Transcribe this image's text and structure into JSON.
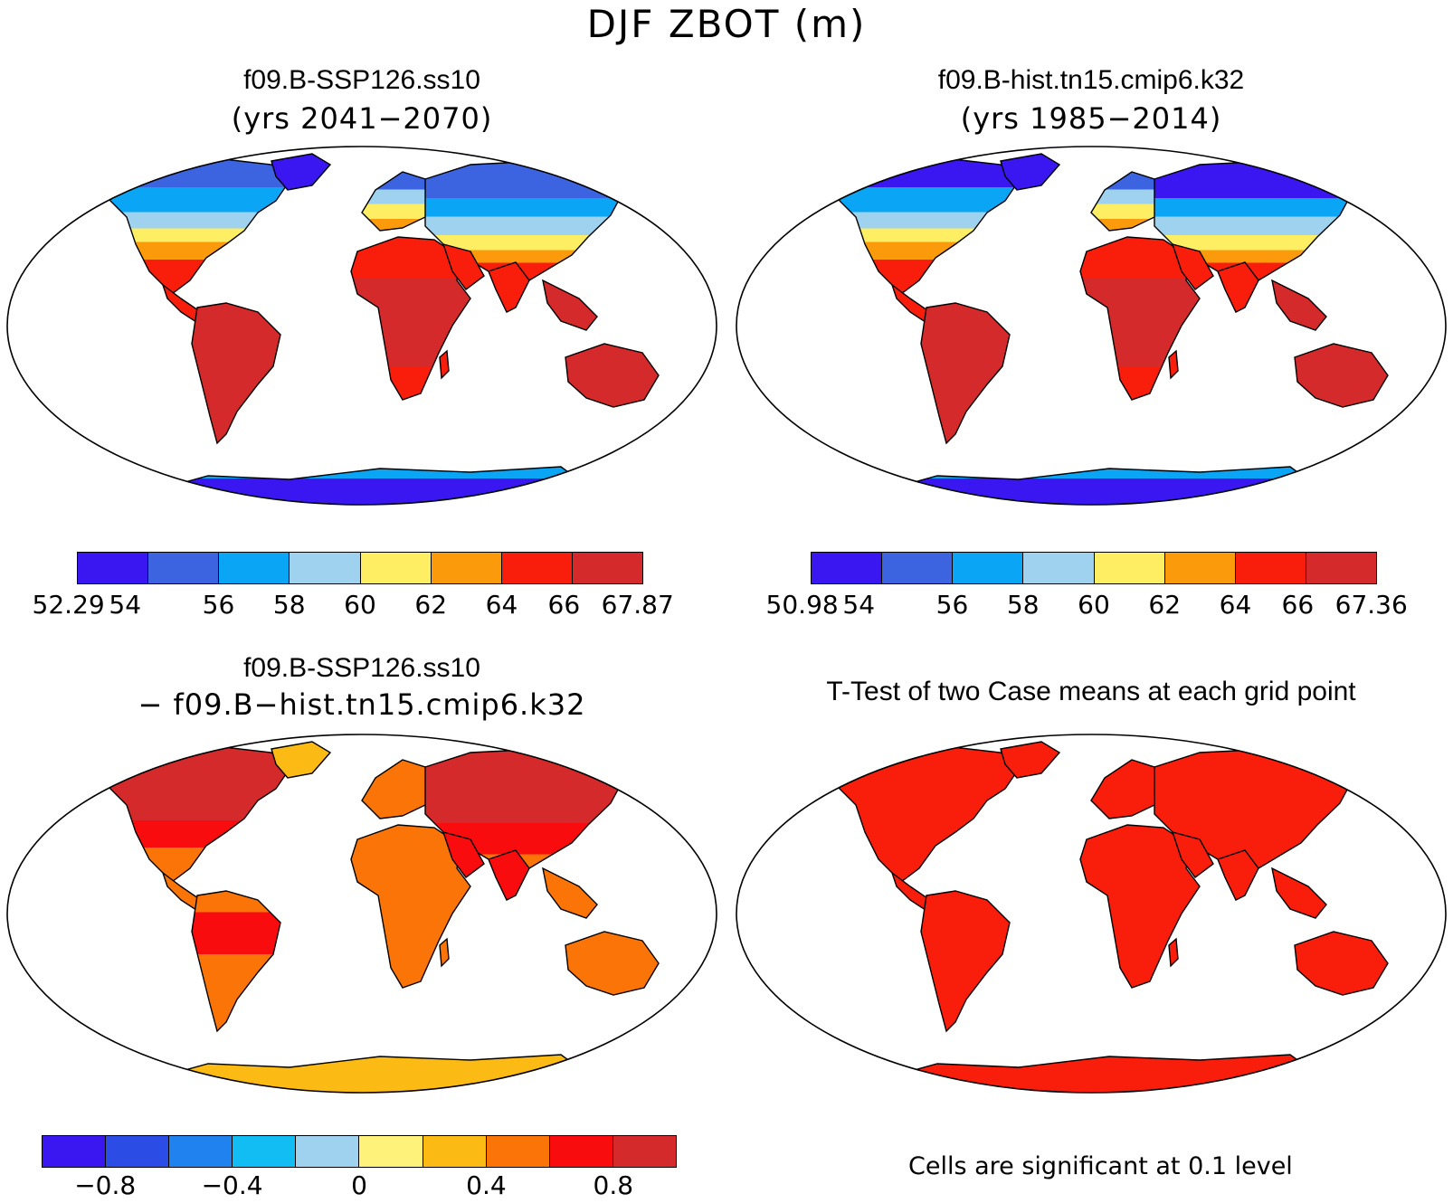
{
  "title": "DJF ZBOT (m)",
  "panels": [
    {
      "id": "p1",
      "title": "f09.B-SSP126.ss10",
      "subtitle": "(yrs 2041−2070)",
      "colormap": "abs"
    },
    {
      "id": "p2",
      "title": "f09.B-hist.tn15.cmip6.k32",
      "subtitle": "(yrs 1985−2014)",
      "colormap": "abs"
    },
    {
      "id": "p3",
      "title": "f09.B-SSP126.ss10",
      "subtitle": "− f09.B−hist.tn15.cmip6.k32",
      "colormap": "diff"
    },
    {
      "id": "p4",
      "title": "T-Test of two Case means at each grid point",
      "subtitle": "",
      "colormap": "sig"
    }
  ],
  "colorbars": {
    "cb1": {
      "colors": [
        "#3a16f0",
        "#3d64e0",
        "#0aa6f5",
        "#9fd2ef",
        "#fdee63",
        "#fb9b0b",
        "#f91d0b",
        "#d42a2b"
      ],
      "labels": [
        "52.29",
        "54",
        "56",
        "58",
        "60",
        "62",
        "64",
        "66",
        "67.87"
      ]
    },
    "cb2": {
      "colors": [
        "#3a16f0",
        "#3d64e0",
        "#0aa6f5",
        "#9fd2ef",
        "#fdee63",
        "#fb9b0b",
        "#f91d0b",
        "#d42a2b"
      ],
      "labels": [
        "50.98",
        "54",
        "56",
        "58",
        "60",
        "62",
        "64",
        "66",
        "67.36"
      ]
    },
    "cb3": {
      "colors": [
        "#3a16f0",
        "#2b4de6",
        "#1f82ef",
        "#12bdf4",
        "#9fd2ef",
        "#fff27a",
        "#fbbb14",
        "#fb7407",
        "#f90c0d",
        "#d42a2b"
      ],
      "labels": [
        "−0.8",
        "−0.4",
        "0",
        "0.4",
        "0.8"
      ]
    }
  },
  "note": "Cells are significant at 0.1 level",
  "colors": {
    "land_sig": "#f91d0b",
    "coast": "#000000",
    "ocean": "#ffffff"
  }
}
